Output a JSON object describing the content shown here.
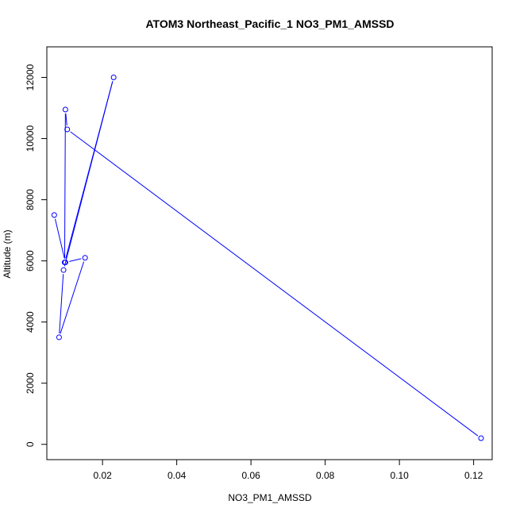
{
  "chart_data": {
    "type": "line",
    "title": "ATOM3 Northeast_Pacific_1 NO3_PM1_AMSSD",
    "xlabel": "NO3_PM1_AMSSD",
    "ylabel": "Altitude (m)",
    "xlim": [
      0.005,
      0.125
    ],
    "ylim": [
      -500,
      13000
    ],
    "x_ticks": [
      0.02,
      0.04,
      0.06,
      0.08,
      0.1,
      0.12
    ],
    "x_tick_labels": [
      "0.02",
      "0.04",
      "0.06",
      "0.08",
      "0.10",
      "0.12"
    ],
    "y_ticks": [
      0,
      2000,
      4000,
      6000,
      8000,
      10000,
      12000
    ],
    "y_tick_labels": [
      "0",
      "2000",
      "4000",
      "6000",
      "8000",
      "10000",
      "12000"
    ],
    "grid": false,
    "line_color": "#0000ff",
    "marker": "open-circle",
    "series": [
      {
        "x": [
          0.122,
          0.0105,
          0.01,
          0.0098,
          0.023,
          0.0095,
          0.0083,
          0.0153,
          0.01,
          0.007
        ],
        "y": [
          200,
          10300,
          10950,
          5950,
          12000,
          5700,
          3500,
          6100,
          5950,
          7500
        ]
      }
    ]
  }
}
